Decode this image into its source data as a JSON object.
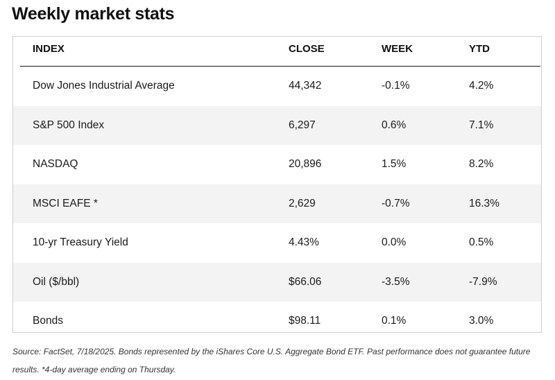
{
  "title": "Weekly market stats",
  "table": {
    "headers": {
      "index": "INDEX",
      "close": "CLOSE",
      "week": "WEEK",
      "ytd": "YTD"
    },
    "rows": [
      {
        "index": "Dow Jones Industrial Average",
        "close": "44,342",
        "week": "-0.1%",
        "ytd": "4.2%"
      },
      {
        "index": "S&P 500 Index",
        "close": "6,297",
        "week": "0.6%",
        "ytd": "7.1%"
      },
      {
        "index": "NASDAQ",
        "close": "20,896",
        "week": "1.5%",
        "ytd": "8.2%"
      },
      {
        "index": "MSCI EAFE *",
        "close": "2,629",
        "week": "-0.7%",
        "ytd": "16.3%"
      },
      {
        "index": "10-yr Treasury Yield",
        "close": "4.43%",
        "week": "0.0%",
        "ytd": "0.5%"
      },
      {
        "index": "Oil ($/bbl)",
        "close": "$66.06",
        "week": "-3.5%",
        "ytd": "-7.9%"
      },
      {
        "index": "Bonds",
        "close": "$98.11",
        "week": "0.1%",
        "ytd": "3.0%"
      }
    ]
  },
  "footnote": "Source: FactSet, 7/18/2025. Bonds represented by the iShares Core U.S. Aggregate Bond ETF. Past performance does not guarantee future results. *4-day average ending on Thursday."
}
